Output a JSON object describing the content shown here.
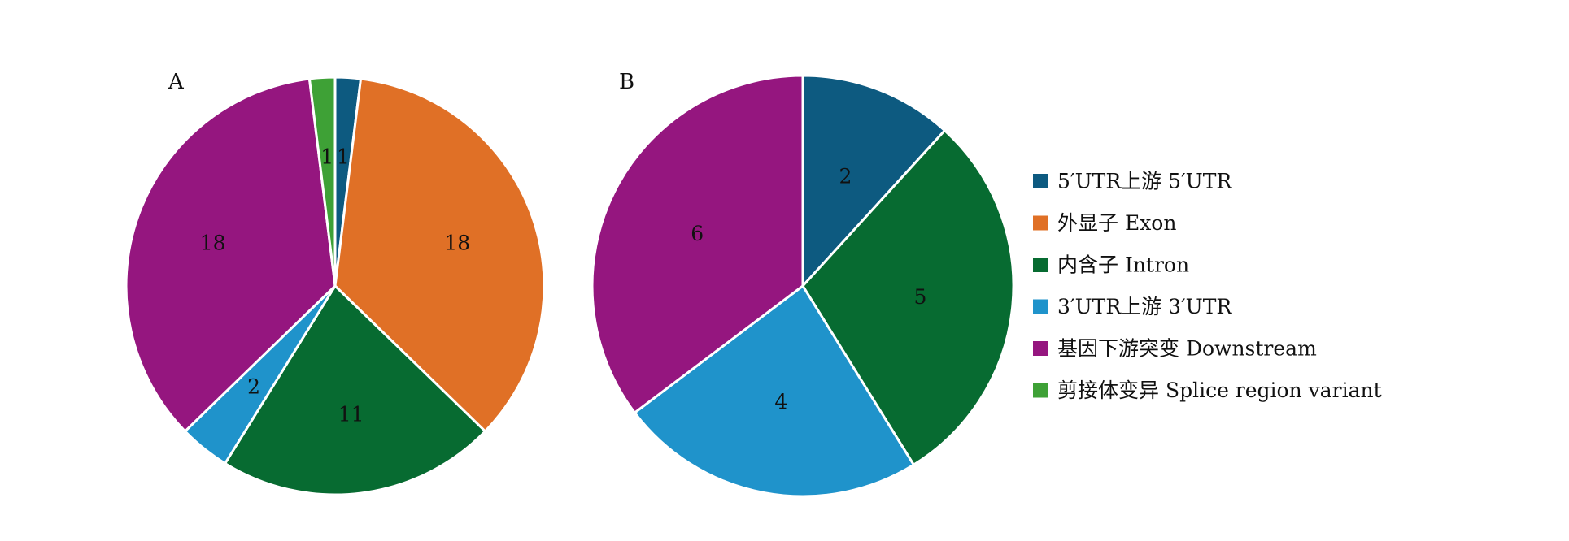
{
  "categories": [
    "5′UTR上游 5′UTR",
    "外显子 Exon",
    "内含子 Intron",
    "3′UTR上游 3′UTR",
    "基因下游突变 Downstream",
    "剪接体变异 Splice region variant"
  ],
  "colors": [
    "#0d5a80",
    "#e07026",
    "#076b31",
    "#1f93cb",
    "#95167f",
    "#3ea136"
  ],
  "chart_data": [
    {
      "type": "pie",
      "panel": "A",
      "categories": [
        "5′UTR上游 5′UTR",
        "外显子 Exon",
        "内含子 Intron",
        "3′UTR上游 3′UTR",
        "基因下游突变 Downstream",
        "剪接体变异 Splice region variant"
      ],
      "values": [
        1,
        18,
        11,
        2,
        18,
        1
      ],
      "labels": [
        "1",
        "18",
        "11",
        "2",
        "18",
        "1"
      ]
    },
    {
      "type": "pie",
      "panel": "B",
      "categories": [
        "5′UTR上游 5′UTR",
        "内含子 Intron",
        "3′UTR上游 3′UTR",
        "基因下游突变 Downstream"
      ],
      "values": [
        2,
        5,
        4,
        6
      ],
      "labels": [
        "2",
        "5",
        "4",
        "6"
      ]
    }
  ],
  "legend": {
    "position": "right",
    "items": [
      {
        "label": "5′UTR上游 5′UTR",
        "color": "#0d5a80"
      },
      {
        "label": "外显子 Exon",
        "color": "#e07026"
      },
      {
        "label": "内含子 Intron",
        "color": "#076b31"
      },
      {
        "label": "3′UTR上游 3′UTR",
        "color": "#1f93cb"
      },
      {
        "label": "基因下游突变 Downstream",
        "color": "#95167f"
      },
      {
        "label": "剪接体变异 Splice region variant",
        "color": "#3ea136"
      }
    ]
  }
}
